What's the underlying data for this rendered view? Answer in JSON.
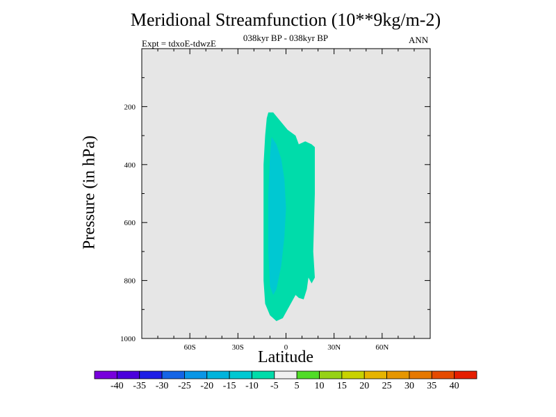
{
  "chart_data": {
    "type": "contour",
    "title": "Meridional Streamfunction (10**9kg/m-2)",
    "subtitle": "038kyr BP - 038kyr BP",
    "left_label": "Expt = tdxoE-tdwzE",
    "right_label": "ANN",
    "xlabel": "Latitude",
    "ylabel": "Pressure (in hPa)",
    "xlim": [
      -90,
      90
    ],
    "ylim": [
      1000,
      0
    ],
    "x_ticks": [
      {
        "value": -60,
        "label": "60S"
      },
      {
        "value": -30,
        "label": "30S"
      },
      {
        "value": 0,
        "label": "0"
      },
      {
        "value": 30,
        "label": "30N"
      },
      {
        "value": 60,
        "label": "60N"
      }
    ],
    "y_ticks": [
      {
        "value": 200,
        "label": "200"
      },
      {
        "value": 400,
        "label": "400"
      },
      {
        "value": 600,
        "label": "600"
      },
      {
        "value": 800,
        "label": "800"
      },
      {
        "value": 1000,
        "label": "1000"
      }
    ],
    "background_color": "#e6e6e6",
    "levels": [
      {
        "range": [
          -10,
          -5
        ],
        "color": "#00dcaa",
        "outline": [
          [
            -11,
            220
          ],
          [
            -8,
            220
          ],
          [
            -5,
            240
          ],
          [
            1,
            280
          ],
          [
            6,
            300
          ],
          [
            8,
            330
          ],
          [
            12,
            320
          ],
          [
            16,
            330
          ],
          [
            18,
            340
          ],
          [
            18,
            500
          ],
          [
            17,
            700
          ],
          [
            18,
            790
          ],
          [
            16,
            810
          ],
          [
            14,
            790
          ],
          [
            13,
            830
          ],
          [
            11,
            865
          ],
          [
            8,
            860
          ],
          [
            6,
            850
          ],
          [
            4,
            870
          ],
          [
            1,
            900
          ],
          [
            -2,
            930
          ],
          [
            -6,
            940
          ],
          [
            -10,
            920
          ],
          [
            -13,
            880
          ],
          [
            -14,
            800
          ],
          [
            -14,
            600
          ],
          [
            -14,
            400
          ],
          [
            -13,
            300
          ],
          [
            -12,
            240
          ]
        ]
      },
      {
        "range": [
          -15,
          -10
        ],
        "color": "#00c8d2",
        "outline": [
          [
            -9,
            305
          ],
          [
            -6,
            330
          ],
          [
            -3,
            380
          ],
          [
            -1,
            450
          ],
          [
            0,
            550
          ],
          [
            -1,
            650
          ],
          [
            -3,
            750
          ],
          [
            -6,
            830
          ],
          [
            -8,
            850
          ],
          [
            -10,
            820
          ],
          [
            -11,
            700
          ],
          [
            -11,
            500
          ],
          [
            -10,
            370
          ]
        ]
      }
    ],
    "colorbar": {
      "labels": [
        "-40",
        "-35",
        "-30",
        "-25",
        "-20",
        "-15",
        "-10",
        "-5",
        "5",
        "10",
        "15",
        "20",
        "25",
        "30",
        "35",
        "40"
      ],
      "colors": [
        "#7800dc",
        "#4b00dc",
        "#1e1ee6",
        "#1464e6",
        "#0a96e6",
        "#00b4dc",
        "#00c8d2",
        "#00dcaa",
        "#f0f0f0",
        "#50dc28",
        "#96d214",
        "#c8d200",
        "#e6b400",
        "#e69600",
        "#e67800",
        "#e64b00",
        "#e61e00"
      ]
    }
  }
}
